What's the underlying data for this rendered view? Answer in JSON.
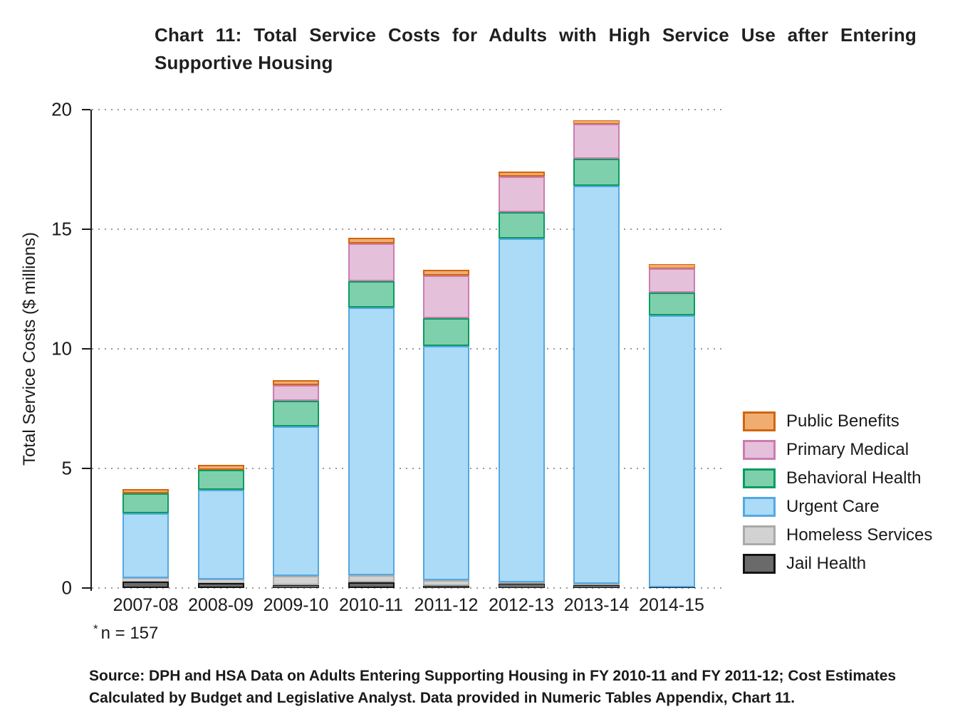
{
  "page": {
    "footnote_star": "*",
    "footnote_text": "n = 157",
    "source_text": "Source: DPH and HSA Data on Adults Entering Supporting Housing in FY 2010-11 and FY 2011-12; Cost Estimates Calculated by Budget and Legislative Analyst. Data provided in Numeric Tables Appendix, Chart 11."
  },
  "colors": {
    "text": "#1a1a1a",
    "gridline": "#9a9a9a",
    "axis": "#1a1a1a"
  },
  "chart_data": {
    "type": "bar",
    "stacked": true,
    "title": "Chart 11: Total Service Costs for Adults with High Service Use after Entering Supportive Housing",
    "xlabel": "",
    "ylabel": "Total Service Costs ($ millions)",
    "units": "$ millions",
    "ylim": [
      0,
      20
    ],
    "yticks": [
      0,
      5,
      10,
      15,
      20
    ],
    "grid": "dotted horizontal gridlines at each ytick",
    "legend_position": "right",
    "legend_order_top_to_bottom": [
      "Public Benefits",
      "Primary Medical",
      "Behavioral Health",
      "Urgent Care",
      "Homeless Services",
      "Jail Health"
    ],
    "categories": [
      "2007-08",
      "2008-09",
      "2009-10",
      "2010-11",
      "2011-12",
      "2012-13",
      "2013-14",
      "2014-15"
    ],
    "series": [
      {
        "name": "Jail Health",
        "fill": "#6a6a6a",
        "border": "#141414",
        "pattern": "dots",
        "values": [
          0.27,
          0.2,
          0.12,
          0.24,
          0.1,
          0.17,
          0.12,
          0.03
        ]
      },
      {
        "name": "Homeless Services",
        "fill": "#d2d2d2",
        "border": "#aaaaaa",
        "pattern": "dots",
        "values": [
          0.15,
          0.16,
          0.38,
          0.3,
          0.23,
          0.06,
          0.06,
          0.0
        ]
      },
      {
        "name": "Urgent Care",
        "fill": "#abdbf6",
        "border": "#54a8e2",
        "pattern": "none",
        "values": [
          2.72,
          3.74,
          6.26,
          11.18,
          9.79,
          14.38,
          16.64,
          11.36
        ]
      },
      {
        "name": "Behavioral Health",
        "fill": "#7ecfac",
        "border": "#0a9c60",
        "pattern": "none",
        "values": [
          0.83,
          0.84,
          1.06,
          1.11,
          1.16,
          1.11,
          1.13,
          0.96
        ]
      },
      {
        "name": "Primary Medical",
        "fill": "#e5c0da",
        "border": "#cb7db1",
        "pattern": "none",
        "values": [
          0.0,
          0.0,
          0.66,
          1.58,
          1.79,
          1.47,
          1.45,
          1.02
        ]
      },
      {
        "name": "Public Benefits",
        "fill": "#f0ad72",
        "border": "#d2650e",
        "pattern": "none",
        "values": [
          0.18,
          0.22,
          0.21,
          0.22,
          0.23,
          0.22,
          0.16,
          0.17
        ]
      }
    ],
    "totals": [
      4.15,
      5.16,
      8.69,
      14.63,
      13.3,
      17.41,
      19.56,
      13.54
    ]
  }
}
